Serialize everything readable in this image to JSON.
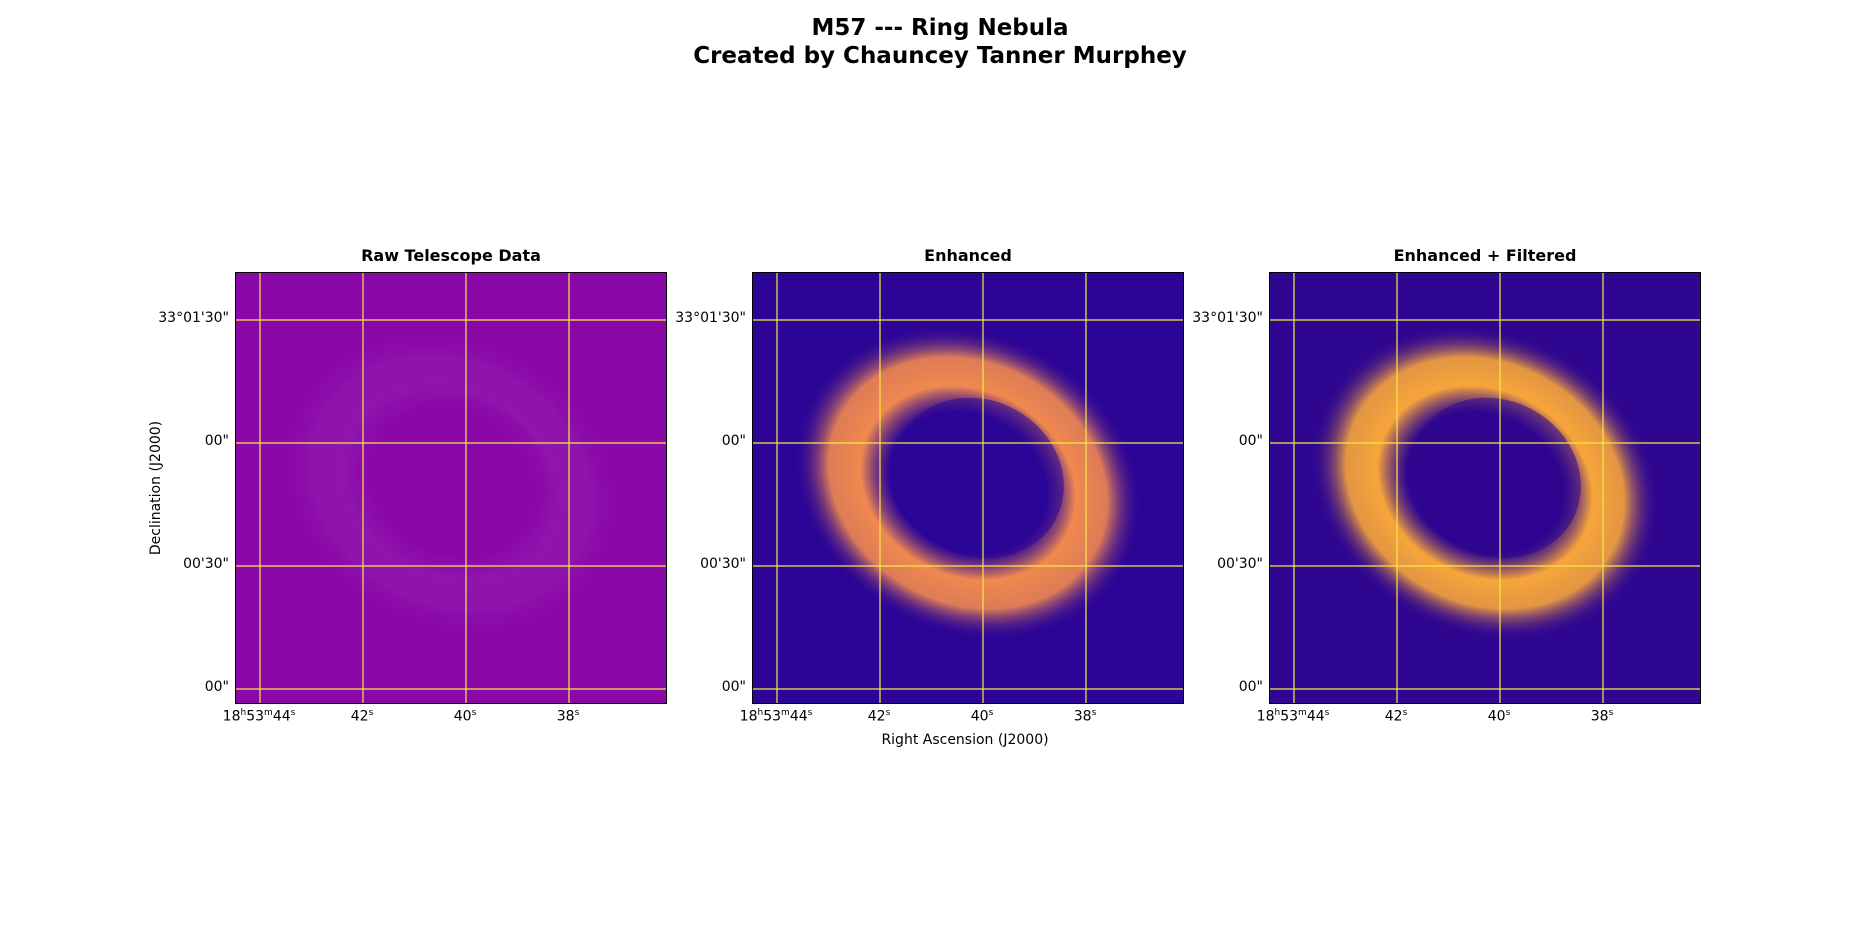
{
  "figure": {
    "title_line1": "M57 --- Ring Nebula",
    "title_line2": "Created by Chauncey Tanner Murphey",
    "xlabel": "Right Ascension (J2000)",
    "ylabel": "Declination (J2000)",
    "grid_color": "#f5e84a",
    "panels": [
      {
        "title": "Raw Telescope Data",
        "background": "#8a07a8",
        "ring": "#9b2fb5",
        "ring_opacity": 0.35
      },
      {
        "title": "Enhanced",
        "background": "#2c0596",
        "ring": "#f0894f",
        "ring_opacity": 1.0
      },
      {
        "title": "Enhanced + Filtered",
        "background": "#2f0690",
        "ring": "#f7a53a",
        "ring_opacity": 1.0
      }
    ],
    "yticks": [
      "33°01'30\"",
      "00\"",
      "00'30\"",
      "00\""
    ],
    "xticks": [
      "18h53m44s",
      "42s",
      "40s",
      "38s"
    ]
  }
}
